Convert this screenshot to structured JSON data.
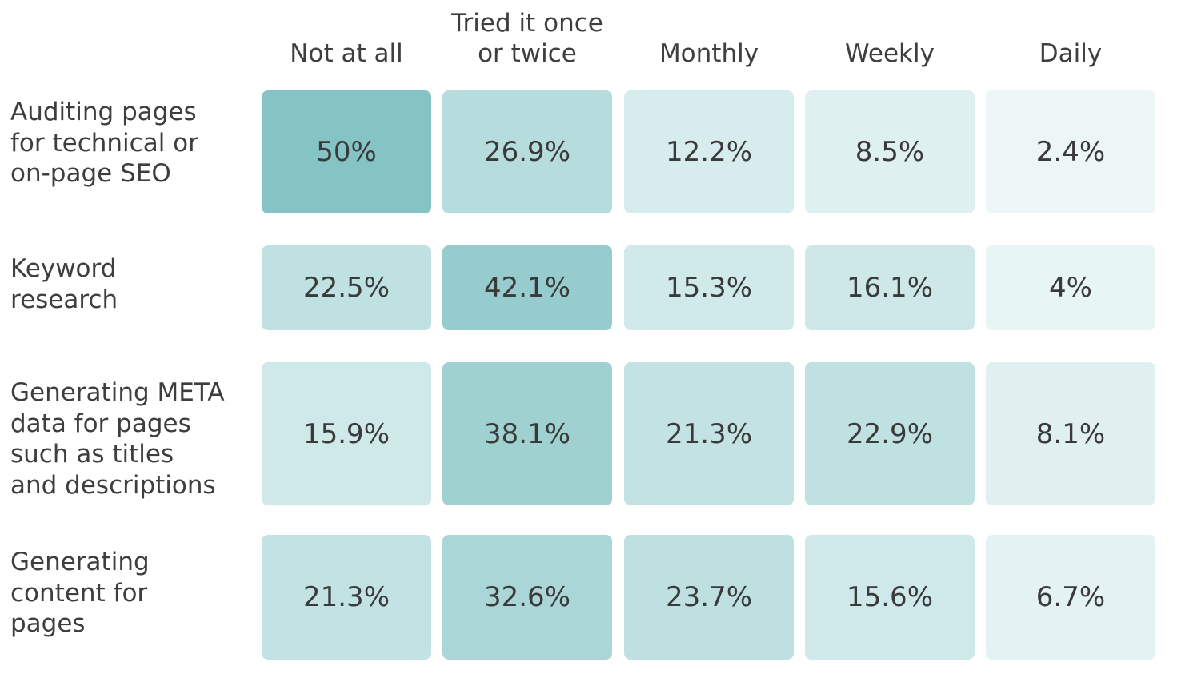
{
  "chart_data": {
    "type": "heatmap",
    "columns": [
      "Not at all",
      "Tried it once\nor twice",
      "Monthly",
      "Weekly",
      "Daily"
    ],
    "rows": [
      {
        "label": "Auditing pages\nfor technical or\non-page SEO",
        "values": [
          50,
          26.9,
          12.2,
          8.5,
          2.4
        ],
        "display": [
          "50%",
          "26.9%",
          "12.2%",
          "8.5%",
          "2.4%"
        ]
      },
      {
        "label": "Keyword\nresearch",
        "values": [
          22.5,
          42.1,
          15.3,
          16.1,
          4
        ],
        "display": [
          "22.5%",
          "42.1%",
          "15.3%",
          "16.1%",
          "4%"
        ]
      },
      {
        "label": "Generating META\ndata for pages\nsuch as titles\nand descriptions",
        "values": [
          15.9,
          38.1,
          21.3,
          22.9,
          8.1
        ],
        "display": [
          "15.9%",
          "38.1%",
          "21.3%",
          "22.9%",
          "8.1%"
        ]
      },
      {
        "label": "Generating\ncontent for\npages",
        "values": [
          21.3,
          32.6,
          23.7,
          15.6,
          6.7
        ],
        "display": [
          "21.3%",
          "32.6%",
          "23.7%",
          "15.6%",
          "6.7%"
        ]
      }
    ],
    "color_scale": {
      "min_color": "#f1f9f9",
      "max_color": "#85c4c5",
      "min_value": 0,
      "max_value": 50
    }
  }
}
